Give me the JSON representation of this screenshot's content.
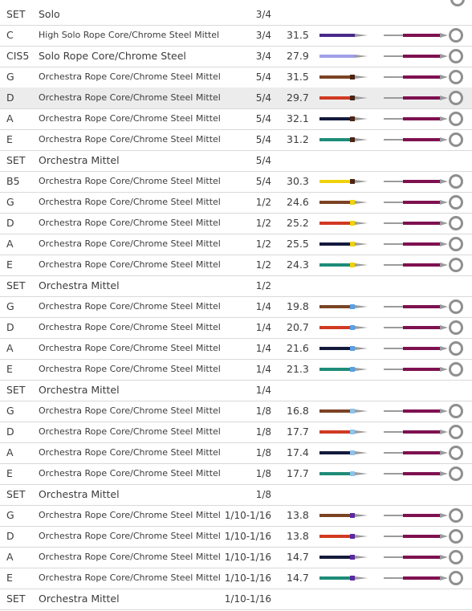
{
  "rows": [
    {
      "note": "SET",
      "name": "Solo",
      "size": "3/4",
      "value": "",
      "type": "set"
    },
    {
      "note": "C",
      "name": "High Solo Rope Core/Chrome Steel Mittel",
      "size": "3/4",
      "value": "31.5",
      "type": "string",
      "bar": "#4a2a8c",
      "mark": "",
      "icon": "violet-silk-icon"
    },
    {
      "note": "CIS5",
      "name": "Solo Rope Core/Chrome Steel",
      "size": "3/4",
      "value": "27.9",
      "type": "string",
      "bar": "#9fa0e6",
      "mark": "",
      "icon": "lilac-silk-icon",
      "solo": true
    },
    {
      "note": "G",
      "name": "Orchestra Rope Core/Chrome Steel Mittel",
      "size": "5/4",
      "value": "31.5",
      "type": "string",
      "bar": "#7a4324",
      "mark": "#4a2414",
      "icon": "brown-silk-icon"
    },
    {
      "note": "D",
      "name": "Orchestra Rope Core/Chrome Steel Mittel",
      "size": "5/4",
      "value": "29.7",
      "type": "string",
      "bar": "#d03a22",
      "mark": "#4a2414",
      "icon": "red-silk-icon",
      "highlight": true
    },
    {
      "note": "A",
      "name": "Orchestra Rope Core/Chrome Steel Mittel",
      "size": "5/4",
      "value": "32.1",
      "type": "string",
      "bar": "#141a3c",
      "mark": "#4a2414",
      "icon": "navy-silk-icon"
    },
    {
      "note": "E",
      "name": "Orchestra Rope Core/Chrome Steel Mittel",
      "size": "5/4",
      "value": "31.2",
      "type": "string",
      "bar": "#1e8c78",
      "mark": "#4a2414",
      "icon": "teal-silk-icon"
    },
    {
      "note": "SET",
      "name": "Orchestra Mittel",
      "size": "5/4",
      "value": "",
      "type": "set"
    },
    {
      "note": "B5",
      "name": "Orchestra Rope Core/Chrome Steel Mittel",
      "size": "5/4",
      "value": "30.3",
      "type": "string",
      "bar": "#f0d20a",
      "mark": "#4a2414",
      "icon": "yellow-silk-icon"
    },
    {
      "note": "G",
      "name": "Orchestra Rope Core/Chrome Steel Mittel",
      "size": "1/2",
      "value": "24.6",
      "type": "string",
      "bar": "#7a4324",
      "mark": "#f0d20a",
      "icon": "brown-silk-icon"
    },
    {
      "note": "D",
      "name": "Orchestra Rope Core/Chrome Steel Mittel",
      "size": "1/2",
      "value": "25.2",
      "type": "string",
      "bar": "#d03a22",
      "mark": "#f0d20a",
      "icon": "red-silk-icon"
    },
    {
      "note": "A",
      "name": "Orchestra Rope Core/Chrome Steel Mittel",
      "size": "1/2",
      "value": "25.5",
      "type": "string",
      "bar": "#141a3c",
      "mark": "#f0d20a",
      "icon": "navy-silk-icon"
    },
    {
      "note": "E",
      "name": "Orchestra Rope Core/Chrome Steel Mittel",
      "size": "1/2",
      "value": "24.3",
      "type": "string",
      "bar": "#1e8c78",
      "mark": "#f0d20a",
      "icon": "teal-silk-icon"
    },
    {
      "note": "SET",
      "name": "Orchestra Mittel",
      "size": "1/2",
      "value": "",
      "type": "set"
    },
    {
      "note": "G",
      "name": "Orchestra Rope Core/Chrome Steel Mittel",
      "size": "1/4",
      "value": "19.8",
      "type": "string",
      "bar": "#7a4324",
      "mark": "#5aa0e6",
      "icon": "brown-silk-icon"
    },
    {
      "note": "D",
      "name": "Orchestra Rope Core/Chrome Steel Mittel",
      "size": "1/4",
      "value": "20.7",
      "type": "string",
      "bar": "#d03a22",
      "mark": "#5aa0e6",
      "icon": "red-silk-icon"
    },
    {
      "note": "A",
      "name": "Orchestra Rope Core/Chrome Steel Mittel",
      "size": "1/4",
      "value": "21.6",
      "type": "string",
      "bar": "#141a3c",
      "mark": "#5aa0e6",
      "icon": "navy-silk-icon"
    },
    {
      "note": "E",
      "name": "Orchestra Rope Core/Chrome Steel Mittel",
      "size": "1/4",
      "value": "21.3",
      "type": "string",
      "bar": "#1e8c78",
      "mark": "#5aa0e6",
      "icon": "teal-silk-icon"
    },
    {
      "note": "SET",
      "name": "Orchestra Mittel",
      "size": "1/4",
      "value": "",
      "type": "set"
    },
    {
      "note": "G",
      "name": "Orchestra Rope Core/Chrome Steel Mittel",
      "size": "1/8",
      "value": "16.8",
      "type": "string",
      "bar": "#7a4324",
      "mark": "#8fc2ea",
      "icon": "brown-silk-icon"
    },
    {
      "note": "D",
      "name": "Orchestra Rope Core/Chrome Steel Mittel",
      "size": "1/8",
      "value": "17.7",
      "type": "string",
      "bar": "#d03a22",
      "mark": "#8fc2ea",
      "icon": "red-silk-icon"
    },
    {
      "note": "A",
      "name": "Orchestra Rope Core/Chrome Steel Mittel",
      "size": "1/8",
      "value": "17.4",
      "type": "string",
      "bar": "#141a3c",
      "mark": "#8fc2ea",
      "icon": "navy-silk-icon"
    },
    {
      "note": "E",
      "name": "Orchestra Rope Core/Chrome Steel Mittel",
      "size": "1/8",
      "value": "17.7",
      "type": "string",
      "bar": "#1e8c78",
      "mark": "#8fc2ea",
      "icon": "teal-silk-icon"
    },
    {
      "note": "SET",
      "name": "Orchestra Mittel",
      "size": "1/8",
      "value": "",
      "type": "set"
    },
    {
      "note": "G",
      "name": "Orchestra Rope Core/Chrome Steel Mittel",
      "size": "1/10-1/16",
      "value": "13.8",
      "type": "string",
      "bar": "#7a4324",
      "mark": "#5a2aa0",
      "icon": "brown-silk-icon"
    },
    {
      "note": "D",
      "name": "Orchestra Rope Core/Chrome Steel Mittel",
      "size": "1/10-1/16",
      "value": "13.8",
      "type": "string",
      "bar": "#d03a22",
      "mark": "#5a2aa0",
      "icon": "red-silk-icon"
    },
    {
      "note": "A",
      "name": "Orchestra Rope Core/Chrome Steel Mittel",
      "size": "1/10-1/16",
      "value": "14.7",
      "type": "string",
      "bar": "#141a3c",
      "mark": "#5a2aa0",
      "icon": "navy-silk-icon"
    },
    {
      "note": "E",
      "name": "Orchestra Rope Core/Chrome Steel Mittel",
      "size": "1/10-1/16",
      "value": "14.7",
      "type": "string",
      "bar": "#1e8c78",
      "mark": "#5a2aa0",
      "icon": "teal-silk-icon"
    },
    {
      "note": "SET",
      "name": "Orchestra Mittel",
      "size": "1/10-1/16",
      "value": "",
      "type": "set"
    }
  ],
  "colors": {
    "winding": "#7e1150",
    "metal": "#9b9b9b",
    "divider": "#d9d9d9",
    "highlight": "#ececec"
  }
}
